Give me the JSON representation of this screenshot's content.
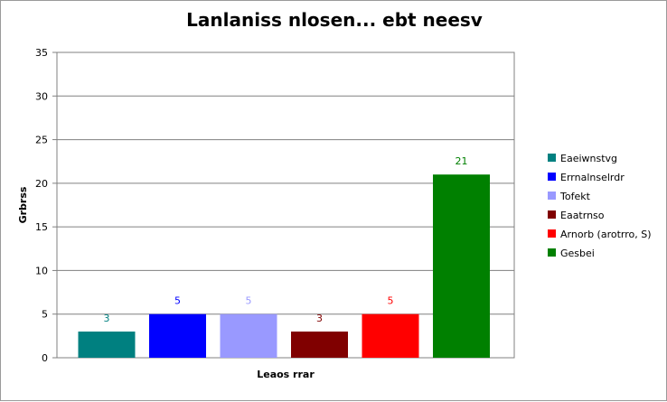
{
  "chart_data": {
    "type": "bar",
    "title": "Lanlaniss nlosen... ebt neesv",
    "xlabel": "Leaos rrar",
    "ylabel": "Grbrss",
    "ylim": [
      0,
      35
    ],
    "yticks": [
      0,
      5,
      10,
      15,
      20,
      25,
      30,
      35
    ],
    "grid": true,
    "legend_position": "right",
    "series": [
      {
        "name": "Eaeiwnstvg",
        "value": 3,
        "color": "#008080"
      },
      {
        "name": "Errnalnselrdr",
        "value": 5,
        "color": "#0000ff"
      },
      {
        "name": "Tofekt",
        "value": 5,
        "color": "#9999ff"
      },
      {
        "name": "Eaatrnso",
        "value": 3,
        "color": "#800000"
      },
      {
        "name": "Arnorb (arotrro, S)",
        "value": 5,
        "color": "#ff0000"
      },
      {
        "name": "Gesbei",
        "value": 21,
        "color": "#008000"
      }
    ]
  }
}
